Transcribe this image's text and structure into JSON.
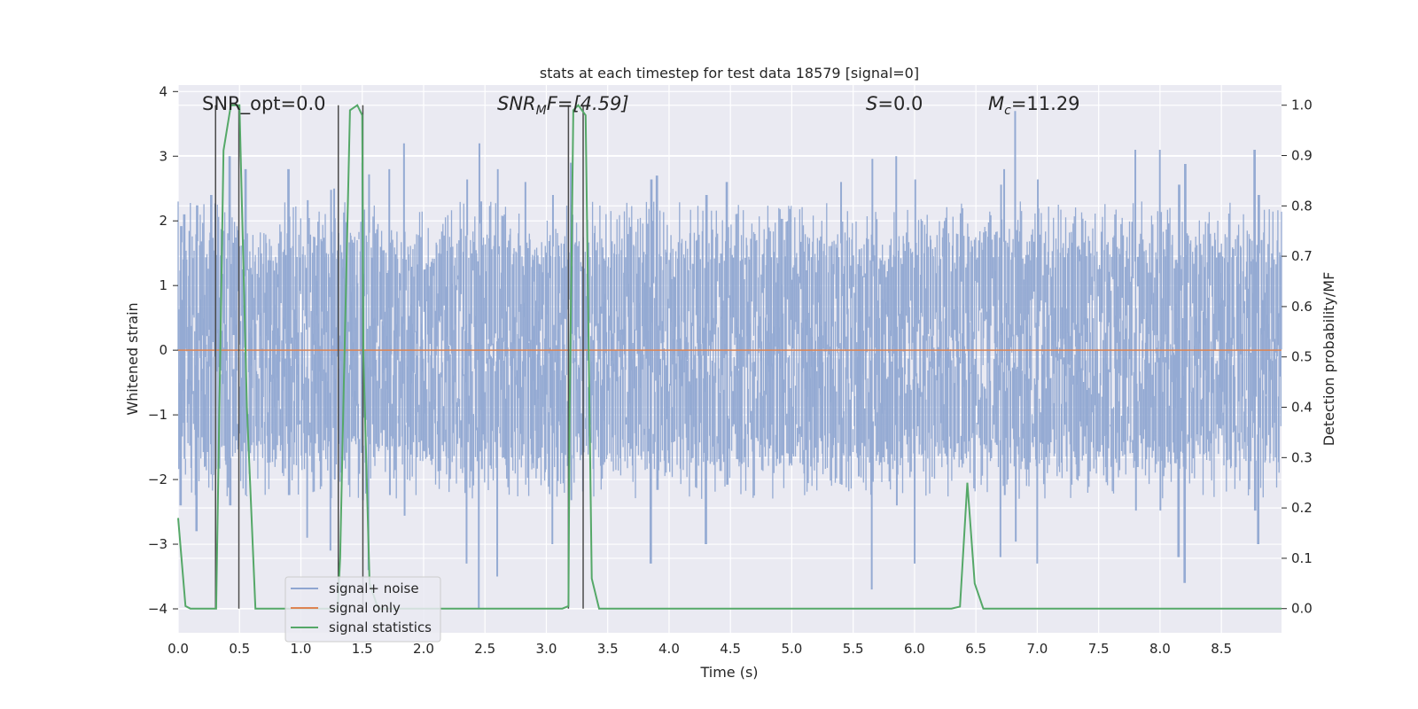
{
  "chart_data": {
    "type": "line",
    "title": "stats at each timestep for test data 18579 [signal=0]",
    "xlabel": "Time (s)",
    "ylabel_left": "Whitened strain",
    "ylabel_right": "Detection probability/MF",
    "xlim": [
      0.0,
      8.99
    ],
    "ylim_left": [
      -4.37,
      4.1
    ],
    "ylim_right": [
      -0.048,
      1.04
    ],
    "x_ticks": [
      "0.0",
      "0.5",
      "1.0",
      "1.5",
      "2.0",
      "2.5",
      "3.0",
      "3.5",
      "4.0",
      "4.5",
      "5.0",
      "5.5",
      "6.0",
      "6.5",
      "7.0",
      "7.5",
      "8.0",
      "8.5"
    ],
    "y_ticks_left": [
      "4",
      "3",
      "2",
      "1",
      "0",
      "-1",
      "-2",
      "-3",
      "-4"
    ],
    "y_ticks_right": [
      "1.0",
      "0.9",
      "0.8",
      "0.7",
      "0.6",
      "0.5",
      "0.4",
      "0.3",
      "0.2",
      "0.1",
      "0.0"
    ],
    "grid": true,
    "legend_position": "lower-left",
    "annotations": {
      "snr_opt": "SNR_opt=0.0",
      "snr_mf_a": "SNR",
      "snr_mf_b": "M",
      "snr_mf_c": "F=[4.59]",
      "s_a": "S",
      "s_b": "=0.0",
      "mc_a": "M",
      "mc_b": "c",
      "mc_c": "=11.29"
    },
    "series": [
      {
        "name": "signal+ noise",
        "color": "#8fa6d1",
        "description_values": "whitened noise, amplitude approx ±2.3 with peaks to ±3.7",
        "envelope_peaks": [
          [
            0.05,
            2.1
          ],
          [
            0.27,
            2.4
          ],
          [
            0.42,
            3.0
          ],
          [
            0.55,
            2.8
          ],
          [
            0.9,
            2.8
          ],
          [
            1.27,
            2.5
          ],
          [
            1.5,
            2.9
          ],
          [
            1.72,
            2.8
          ],
          [
            1.84,
            3.2
          ],
          [
            2.47,
            2.3
          ],
          [
            2.83,
            2.6
          ],
          [
            3.2,
            2.9
          ],
          [
            3.9,
            2.7
          ],
          [
            4.47,
            2.6
          ],
          [
            5.4,
            2.6
          ],
          [
            5.85,
            3.0
          ],
          [
            6.73,
            2.8
          ],
          [
            6.82,
            3.7
          ],
          [
            7.8,
            3.1
          ],
          [
            8.0,
            3.1
          ],
          [
            8.77,
            3.1
          ]
        ],
        "envelope_troughs": [
          [
            0.02,
            -2.4
          ],
          [
            0.15,
            -2.8
          ],
          [
            1.05,
            -2.9
          ],
          [
            1.24,
            -3.1
          ],
          [
            1.55,
            -3.4
          ],
          [
            2.35,
            -3.3
          ],
          [
            2.45,
            -4.0
          ],
          [
            2.6,
            -3.5
          ],
          [
            3.05,
            -3.0
          ],
          [
            3.85,
            -3.3
          ],
          [
            4.3,
            -3.0
          ],
          [
            5.65,
            -3.7
          ],
          [
            6.0,
            -3.3
          ],
          [
            6.7,
            -3.2
          ],
          [
            7.0,
            -3.3
          ],
          [
            8.15,
            -3.2
          ],
          [
            8.2,
            -3.6
          ],
          [
            8.8,
            -3.0
          ]
        ]
      },
      {
        "name": "signal only",
        "color": "#dd8452",
        "x": [
          0.0,
          8.99
        ],
        "y": [
          0.0,
          0.0
        ]
      },
      {
        "name": "signal statistics",
        "color": "#55a868",
        "axis": "right",
        "x": [
          0.0,
          0.06,
          0.1,
          0.3,
          0.31,
          0.37,
          0.43,
          0.5,
          0.56,
          0.63,
          0.7,
          1.0,
          1.3,
          1.32,
          1.35,
          1.4,
          1.46,
          1.5,
          1.51,
          1.56,
          1.63,
          2.0,
          3.13,
          3.18,
          3.19,
          3.22,
          3.26,
          3.32,
          3.37,
          3.43,
          4.0,
          6.3,
          6.37,
          6.43,
          6.49,
          6.56,
          8.99
        ],
        "y": [
          0.18,
          0.005,
          0.0,
          0.0,
          0.0,
          0.91,
          1.0,
          1.0,
          0.4,
          0.0,
          0.0,
          0.0,
          0.0,
          0.1,
          0.45,
          0.99,
          1.0,
          0.98,
          0.5,
          0.05,
          0.0,
          0.0,
          0.0,
          0.005,
          0.4,
          0.99,
          1.0,
          0.98,
          0.06,
          0.0,
          0.0,
          0.0,
          0.004,
          0.25,
          0.05,
          0.0,
          0.0
        ]
      }
    ],
    "vertical_markers": {
      "color": "#4a4a4a",
      "x": [
        0.305,
        0.495,
        1.305,
        1.505,
        3.18,
        3.3
      ]
    }
  }
}
